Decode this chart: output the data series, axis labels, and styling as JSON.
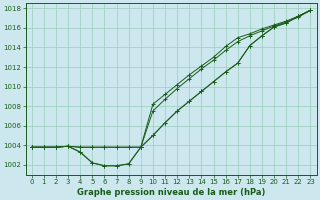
{
  "bg_color": "#cce8ee",
  "grid_color": "#99ccbb",
  "line_color": "#1a5c1a",
  "title": "Graphe pression niveau de la mer (hPa)",
  "xlim": [
    -0.5,
    23.5
  ],
  "ylim": [
    1001.0,
    1018.5
  ],
  "yticks": [
    1002,
    1004,
    1006,
    1008,
    1010,
    1012,
    1014,
    1016,
    1018
  ],
  "xticks": [
    0,
    1,
    2,
    3,
    4,
    5,
    6,
    7,
    8,
    9,
    10,
    11,
    12,
    13,
    14,
    15,
    16,
    17,
    18,
    19,
    20,
    21,
    22,
    23
  ],
  "series": [
    [
      1003.8,
      1003.8,
      1003.8,
      1003.9,
      1003.3,
      1002.2,
      1001.9,
      1001.9,
      1002.1,
      1003.8,
      1005.0,
      1006.3,
      1007.5,
      1008.5,
      1009.5,
      1010.5,
      1011.5,
      1012.4,
      1014.2,
      1015.2,
      1016.1,
      1016.5,
      1017.2,
      1017.8
    ],
    [
      1003.8,
      1003.8,
      1003.8,
      1003.9,
      1003.3,
      1002.2,
      1001.9,
      1001.9,
      1002.1,
      1003.8,
      1005.0,
      1006.3,
      1007.5,
      1008.5,
      1009.5,
      1010.5,
      1011.5,
      1012.4,
      1014.2,
      1015.2,
      1016.1,
      1016.5,
      1017.2,
      1017.8
    ],
    [
      1003.8,
      1003.8,
      1003.8,
      1003.9,
      1003.8,
      1003.8,
      1003.8,
      1003.8,
      1003.8,
      1003.8,
      1007.5,
      1008.7,
      1009.8,
      1010.8,
      1011.8,
      1012.7,
      1013.7,
      1014.6,
      1015.2,
      1015.7,
      1016.2,
      1016.6,
      1017.1,
      1017.8
    ],
    [
      1003.8,
      1003.8,
      1003.8,
      1003.9,
      1003.8,
      1003.8,
      1003.8,
      1003.8,
      1003.8,
      1003.8,
      1008.2,
      1009.2,
      1010.2,
      1011.2,
      1012.1,
      1013.0,
      1014.1,
      1015.0,
      1015.4,
      1015.9,
      1016.3,
      1016.7,
      1017.2,
      1017.8
    ]
  ]
}
